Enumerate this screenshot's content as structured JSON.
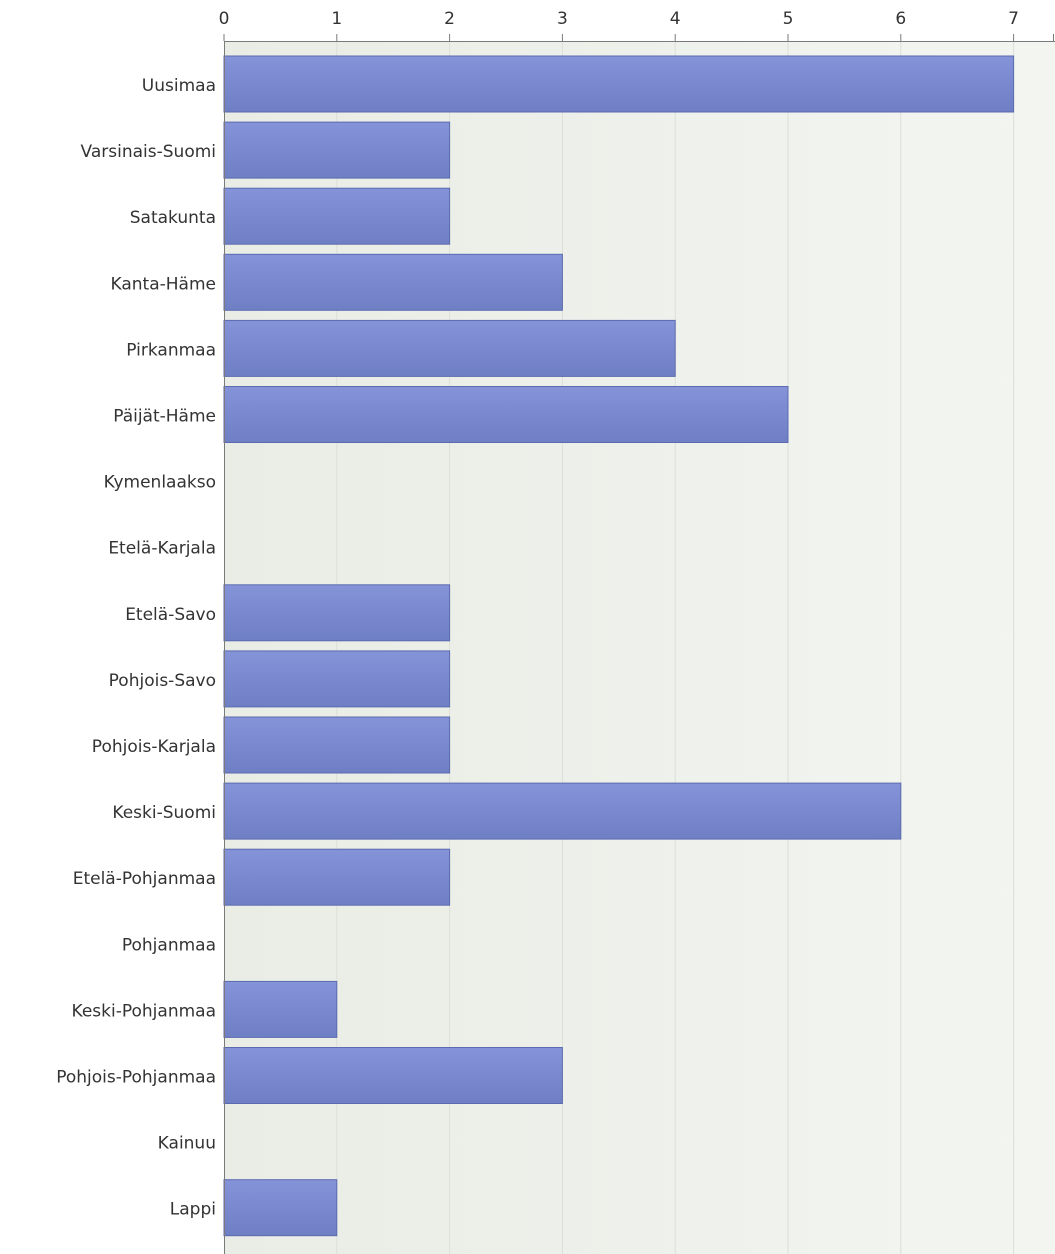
{
  "chart_data": {
    "type": "bar",
    "orientation": "horizontal",
    "title": "",
    "xlabel": "",
    "ylabel": "",
    "xlim": [
      0,
      7
    ],
    "ticks": [
      0,
      1,
      2,
      3,
      4,
      5,
      6,
      7
    ],
    "grid": true,
    "legend": "none",
    "categories": [
      "Uusimaa",
      "Varsinais-Suomi",
      "Satakunta",
      "Kanta-Häme",
      "Pirkanmaa",
      "Päijät-Häme",
      "Kymenlaakso",
      "Etelä-Karjala",
      "Etelä-Savo",
      "Pohjois-Savo",
      "Pohjois-Karjala",
      "Keski-Suomi",
      "Etelä-Pohjanmaa",
      "Pohjanmaa",
      "Keski-Pohjanmaa",
      "Pohjois-Pohjanmaa",
      "Kainuu",
      "Lappi"
    ],
    "values": [
      7,
      2,
      2,
      3,
      4,
      5,
      0,
      0,
      2,
      2,
      2,
      6,
      2,
      0,
      1,
      3,
      0,
      1
    ],
    "colors": {
      "bar_top": "#8593d9",
      "bar_bottom": "#6f7fc4",
      "bar_edge": "#5c6bb0",
      "plot_bg": "#eef1ea",
      "grid": "#dcdfd8",
      "axis": "#7a7a7a"
    }
  }
}
